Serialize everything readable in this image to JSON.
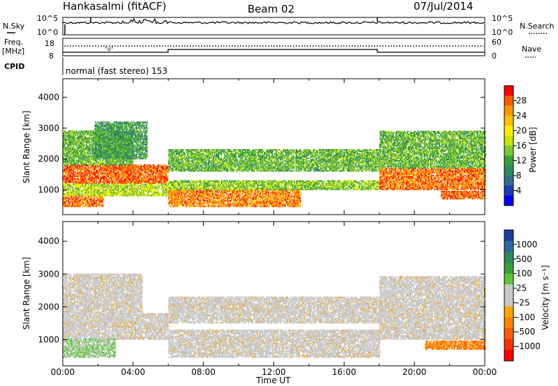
{
  "header": {
    "station": "Hankasalmi (fitACF)",
    "beam": "Beam 02",
    "date": "07/Jul/2014"
  },
  "strips": {
    "nsky_label": "N.Sky",
    "nsearch_label": "N.Search",
    "nsky_ticks": [
      "10^5",
      "10^0"
    ],
    "nsearch_ticks": [
      "10^5",
      "10^0"
    ],
    "freq_label_1": "Freq.",
    "freq_label_2": "[MHz]",
    "freq_ticks": [
      "18",
      "8"
    ],
    "nave_label": "Nave",
    "nave_ticks": [
      "60",
      "0"
    ],
    "cpid_label": "CPID",
    "cpid_text": "normal (fast stereo) 153"
  },
  "colorbars": {
    "power": {
      "label": "Power [dB]",
      "ticks": [
        "28",
        "24",
        "20",
        "16",
        "12",
        "8",
        "4"
      ],
      "colors": [
        "#ff0000",
        "#ff5a00",
        "#ff9600",
        "#ffbf00",
        "#ffee00",
        "#c8e600",
        "#7acc30",
        "#3a9e3a",
        "#2e8a5a",
        "#2d6f8c",
        "#1b3fb4",
        "#0000ff"
      ]
    },
    "velocity": {
      "label": "Velocity [m s⁻¹]",
      "ticks": [
        "1000",
        "500",
        "100",
        "25",
        "-25",
        "-100",
        "-500",
        "-1000"
      ],
      "colors": [
        "#1a3fa0",
        "#2a6aa0",
        "#2e8a60",
        "#37a037",
        "#5fc43a",
        "#c8c8c8",
        "#c8c8c8",
        "#ffa500",
        "#ff8200",
        "#ff5a00",
        "#ff3000",
        "#ff0000"
      ]
    }
  },
  "time_axis": {
    "label": "Time UT",
    "ticks": [
      "00:00",
      "04:00",
      "08:00",
      "12:00",
      "16:00",
      "20:00",
      "00:00"
    ]
  },
  "chart_data": [
    {
      "type": "heatmap",
      "panel": "power",
      "ylabel": "Slant Range [km]",
      "xlim": [
        0,
        24
      ],
      "ylim": [
        200,
        4600
      ],
      "yticks": [
        1000,
        2000,
        3000,
        4000
      ],
      "zlim": [
        0,
        30
      ],
      "scatter_regions": [
        {
          "t0": 0.0,
          "t1": 6.0,
          "r0": 1200,
          "r1": 1800,
          "power": 27
        },
        {
          "t0": 0.0,
          "t1": 6.0,
          "r0": 800,
          "r1": 1200,
          "power": 16
        },
        {
          "t0": 0.0,
          "t1": 2.3,
          "r0": 450,
          "r1": 800,
          "power": 26
        },
        {
          "t0": 0.0,
          "t1": 4.0,
          "r0": 1800,
          "r1": 2900,
          "power": 12
        },
        {
          "t0": 1.8,
          "t1": 4.8,
          "r0": 2000,
          "r1": 3200,
          "power": 10
        },
        {
          "t0": 6.0,
          "t1": 13.5,
          "r0": 450,
          "r1": 1000,
          "power": 25
        },
        {
          "t0": 6.0,
          "t1": 18.0,
          "r0": 1000,
          "r1": 1300,
          "power": 14
        },
        {
          "t0": 6.0,
          "t1": 18.0,
          "r0": 1600,
          "r1": 2300,
          "power": 12
        },
        {
          "t0": 18.0,
          "t1": 24.0,
          "r0": 1000,
          "r1": 1700,
          "power": 26
        },
        {
          "t0": 18.0,
          "t1": 24.0,
          "r0": 1700,
          "r1": 2900,
          "power": 12
        },
        {
          "t0": 21.5,
          "t1": 24.0,
          "r0": 700,
          "r1": 950,
          "power": 27
        }
      ]
    },
    {
      "type": "heatmap",
      "panel": "velocity",
      "ylabel": "Slant Range [km]",
      "xlim": [
        0,
        24
      ],
      "ylim": [
        200,
        4600
      ],
      "yticks": [
        1000,
        2000,
        3000,
        4000
      ],
      "zlim": [
        -1000,
        1000
      ],
      "scatter_regions": [
        {
          "t0": 0.0,
          "t1": 6.0,
          "r0": 1000,
          "r1": 1800,
          "velocity": 0
        },
        {
          "t0": 0.0,
          "t1": 3.0,
          "r0": 450,
          "r1": 1000,
          "velocity": 100
        },
        {
          "t0": 0.0,
          "t1": 4.5,
          "r0": 1800,
          "r1": 3000,
          "velocity": 0
        },
        {
          "t0": 6.0,
          "t1": 18.0,
          "r0": 450,
          "r1": 1300,
          "velocity": 0
        },
        {
          "t0": 6.0,
          "t1": 18.0,
          "r0": 1500,
          "r1": 2300,
          "velocity": 0
        },
        {
          "t0": 18.0,
          "t1": 24.0,
          "r0": 1000,
          "r1": 2900,
          "velocity": 0
        },
        {
          "t0": 20.6,
          "t1": 24.0,
          "r0": 700,
          "r1": 950,
          "velocity": -100
        }
      ]
    }
  ]
}
